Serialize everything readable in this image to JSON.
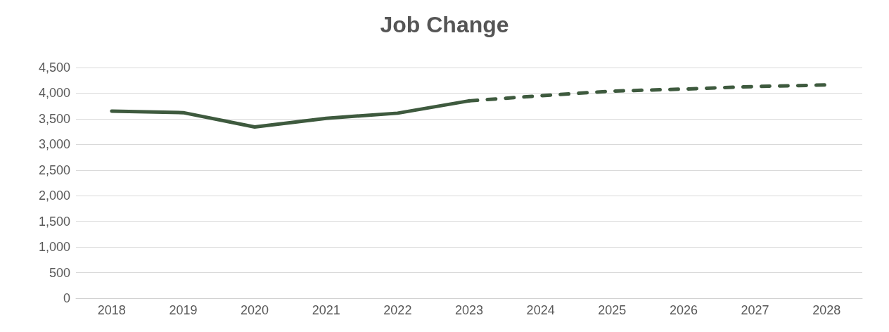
{
  "chart_data": {
    "type": "line",
    "title": "Job Change",
    "categories": [
      "2018",
      "2019",
      "2020",
      "2021",
      "2022",
      "2023",
      "2024",
      "2025",
      "2026",
      "2027",
      "2028"
    ],
    "series": [
      {
        "color": "#3e5a3e",
        "line_style": "solid",
        "values": [
          3650,
          3620,
          3340,
          3510,
          3610,
          3850,
          null,
          null,
          null,
          null,
          null
        ]
      },
      {
        "color": "#3e5a3e",
        "line_style": "dashed",
        "values": [
          null,
          null,
          null,
          null,
          null,
          3850,
          3950,
          4040,
          4080,
          4130,
          4160
        ]
      }
    ],
    "ylim": [
      0,
      4500
    ],
    "yticks": [
      0,
      500,
      {
        "value": 1000,
        "label": "1,000"
      },
      {
        "value": 1500,
        "label": "1,500"
      },
      {
        "value": 2000,
        "label": "2,000"
      },
      {
        "value": 2500,
        "label": "2,500"
      },
      {
        "value": 3000,
        "label": "3,000"
      },
      {
        "value": 3500,
        "label": "3,500"
      },
      {
        "value": 4000,
        "label": "4,000"
      },
      {
        "value": 4500,
        "label": "4,500"
      }
    ],
    "grid": "y",
    "marker": "none"
  }
}
